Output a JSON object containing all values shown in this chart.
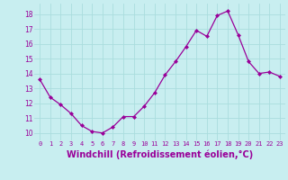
{
  "x": [
    0,
    1,
    2,
    3,
    4,
    5,
    6,
    7,
    8,
    9,
    10,
    11,
    12,
    13,
    14,
    15,
    16,
    17,
    18,
    19,
    20,
    21,
    22,
    23
  ],
  "y": [
    13.6,
    12.4,
    11.9,
    11.3,
    10.5,
    10.1,
    10.0,
    10.4,
    11.1,
    11.1,
    11.8,
    12.7,
    13.9,
    14.8,
    15.8,
    16.9,
    16.5,
    17.9,
    18.2,
    16.6,
    14.8,
    14.0,
    14.1,
    13.8
  ],
  "line_color": "#990099",
  "marker": "D",
  "marker_size": 2.0,
  "xlabel": "Windchill (Refroidissement éolien,°C)",
  "xlabel_fontsize": 7,
  "xtick_labels": [
    "0",
    "1",
    "2",
    "3",
    "4",
    "5",
    "6",
    "7",
    "8",
    "9",
    "10",
    "11",
    "12",
    "13",
    "14",
    "15",
    "16",
    "17",
    "18",
    "19",
    "20",
    "21",
    "22",
    "23"
  ],
  "ytick_labels": [
    "10",
    "11",
    "12",
    "13",
    "14",
    "15",
    "16",
    "17",
    "18"
  ],
  "ylim": [
    9.5,
    18.7
  ],
  "xlim": [
    -0.5,
    23.5
  ],
  "background_color": "#c8eef0",
  "grid_color": "#aadddd",
  "tick_color": "#990099",
  "label_color": "#990099"
}
